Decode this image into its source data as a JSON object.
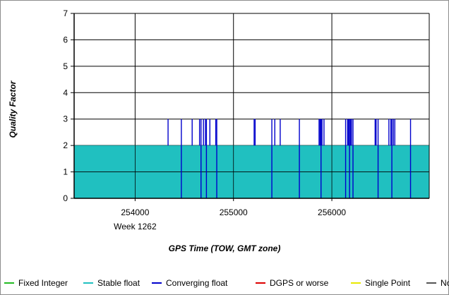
{
  "chart_data": {
    "type": "area",
    "title": "",
    "xlabel": "GPS Time (TOW, GMT zone)",
    "ylabel": "Quality Factor",
    "xlim": [
      253380,
      256990
    ],
    "ylim": [
      0,
      7
    ],
    "x_ticks": [
      {
        "value": 254000,
        "label": "254000",
        "sublabel": "Week 1262"
      },
      {
        "value": 255000,
        "label": "255000",
        "sublabel": ""
      },
      {
        "value": 256000,
        "label": "256000",
        "sublabel": ""
      }
    ],
    "y_ticks": [
      0,
      1,
      2,
      3,
      4,
      5,
      6,
      7
    ],
    "grid": true,
    "legend_position": "bottom",
    "series": [
      {
        "name": "Fixed Integer",
        "color": "#22bb22",
        "values": []
      },
      {
        "name": "Stable float",
        "color": "#20c0c0",
        "value": 2,
        "x_range": [
          253380,
          256990
        ]
      },
      {
        "name": "Converging float",
        "color": "#0000cc",
        "value": 3,
        "x": [
          254335,
          254470,
          254580,
          254655,
          254670,
          254695,
          254715,
          254725,
          254760,
          254820,
          254830,
          255210,
          255220,
          255390,
          255420,
          255475,
          255670,
          255870,
          255880,
          255890,
          255900,
          255920,
          256140,
          256160,
          256170,
          256180,
          256190,
          256200,
          256215,
          256440,
          256450,
          256470,
          256580,
          256600,
          256610,
          256625,
          256640,
          256800
        ]
      },
      {
        "name": "DGPS or worse",
        "color": "#dd0000",
        "values": []
      },
      {
        "name": "Single Point",
        "color": "#e8e800",
        "values": []
      },
      {
        "name": "No",
        "color": "#555555",
        "values": []
      }
    ]
  }
}
